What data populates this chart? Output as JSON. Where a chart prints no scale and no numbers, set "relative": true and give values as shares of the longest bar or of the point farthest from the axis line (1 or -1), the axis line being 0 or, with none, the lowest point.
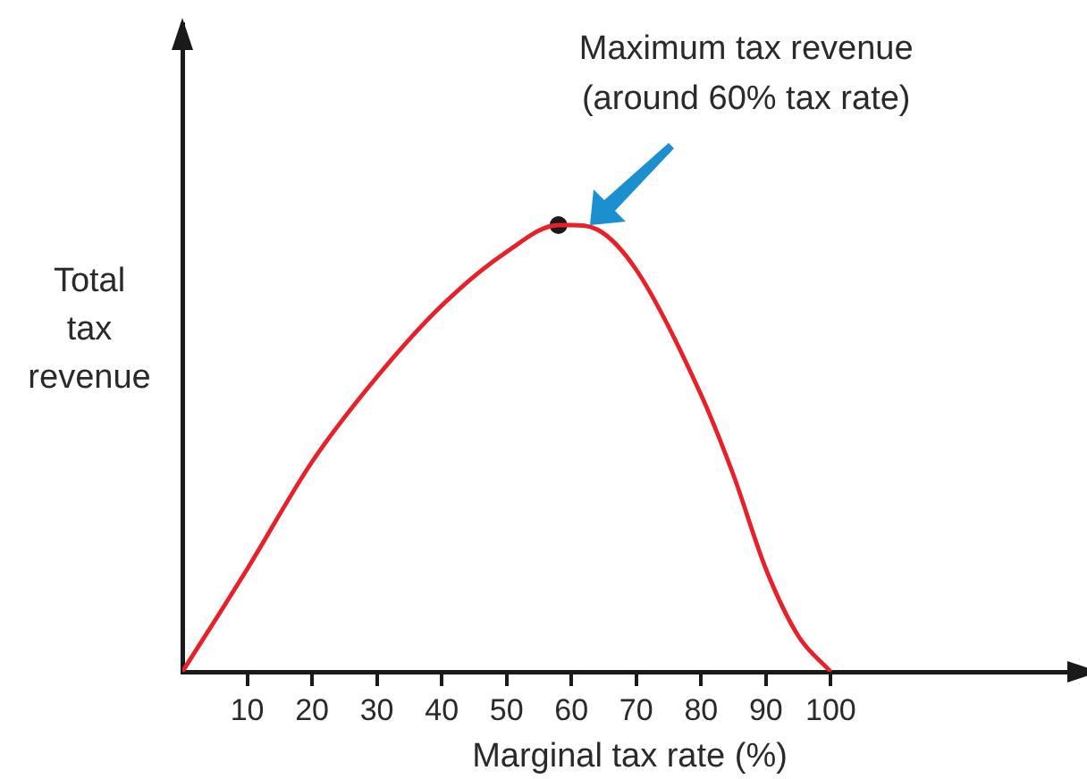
{
  "chart_data": {
    "type": "line",
    "xlabel": "Marginal tax rate (%)",
    "ylabel": "Total tax revenue",
    "relative": true,
    "xlim": [
      0,
      138
    ],
    "xticks": [
      10,
      20,
      30,
      40,
      50,
      60,
      70,
      80,
      90,
      100
    ],
    "grid": false,
    "legend": false,
    "marker": "none",
    "line_style": "solid",
    "series": [
      {
        "color": "#e8202a",
        "x": [
          0,
          10,
          20,
          30,
          40,
          50,
          58,
          60,
          64,
          70,
          80,
          85,
          90,
          95,
          100
        ],
        "values": [
          0,
          0.23,
          0.47,
          0.66,
          0.82,
          0.94,
          1,
          1,
          0.99,
          0.9,
          0.62,
          0.44,
          0.23,
          0.08,
          0
        ]
      },
      {
        "type": "scatter",
        "color": "#1a1a1a",
        "marker": "circle",
        "x": [
          58
        ],
        "values": [
          1
        ]
      }
    ],
    "annotations": [
      "Maximum tax revenue (around 60% tax rate)"
    ]
  }
}
